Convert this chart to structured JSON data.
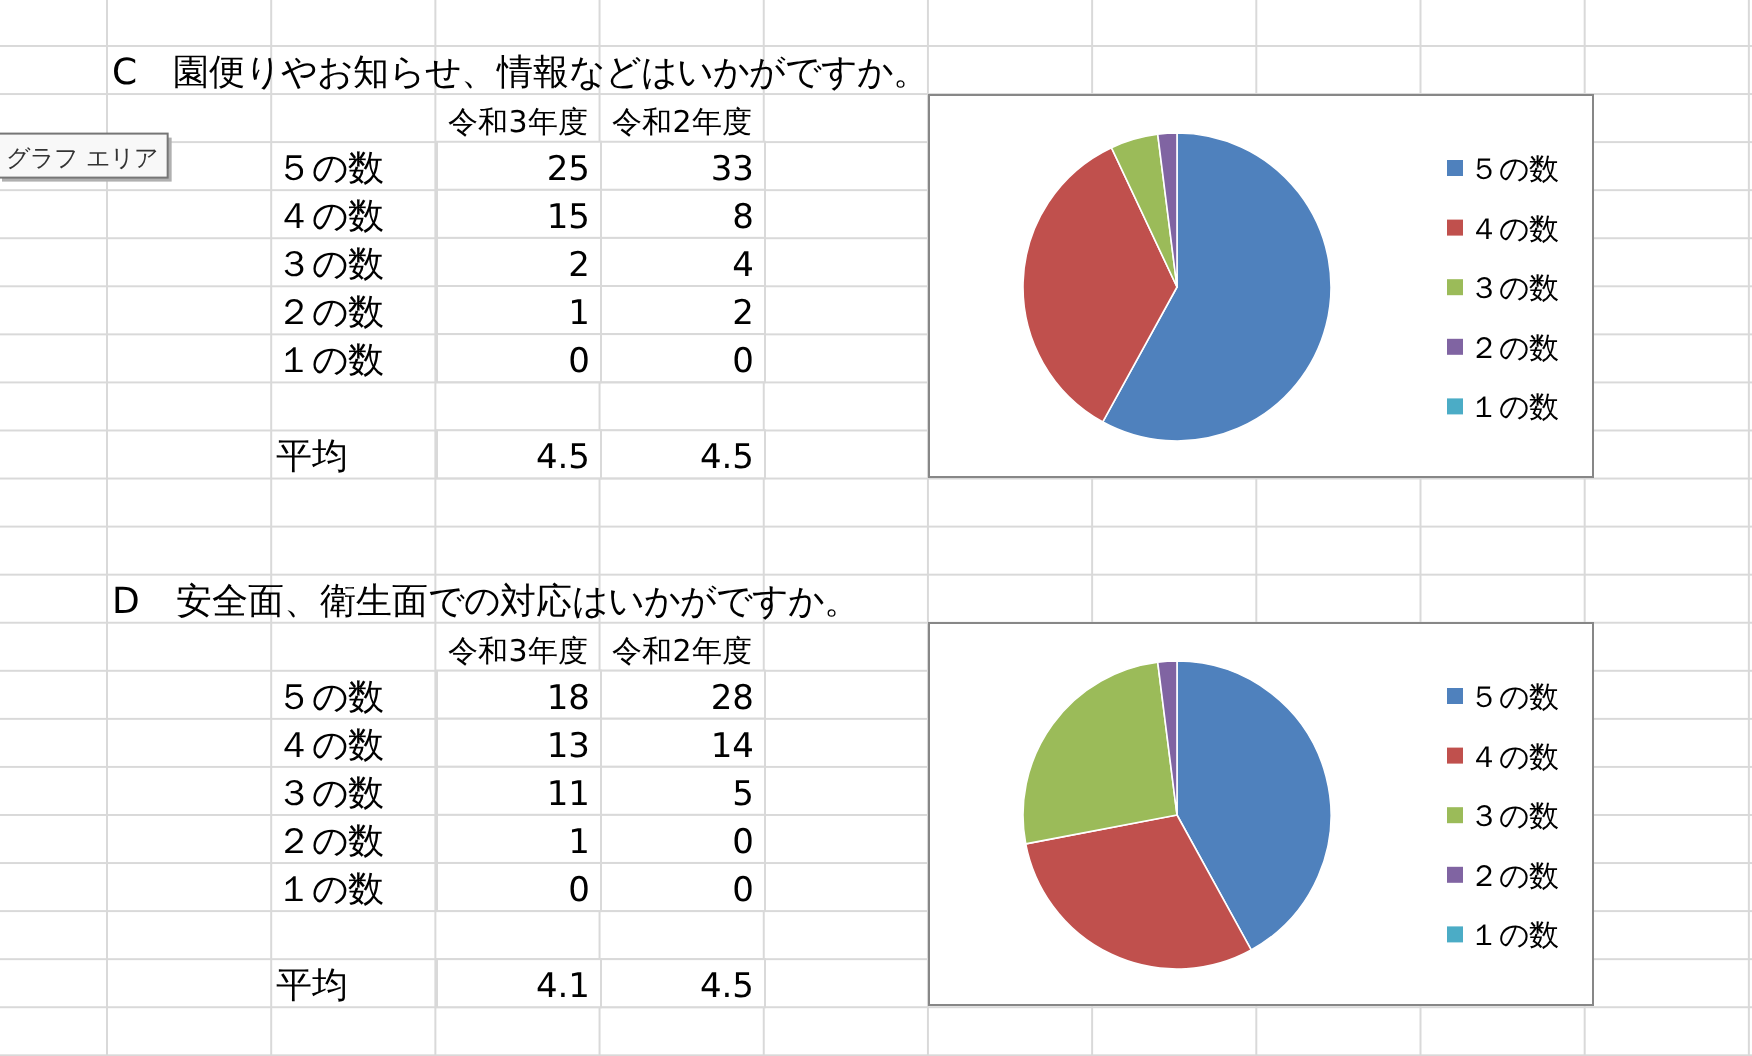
{
  "chart_data": [
    {
      "type": "heatmap",
      "title": "C　園便りやお知らせ、情報などはいかがですか。",
      "categories": [
        "令和3年度",
        "令和2年度"
      ],
      "y_categories": [
        "５の数",
        "４の数",
        "３の数",
        "２の数",
        "１の数"
      ],
      "cells": [
        [
          25,
          33
        ],
        [
          15,
          8
        ],
        [
          2,
          4
        ],
        [
          1,
          2
        ],
        [
          0,
          0
        ]
      ],
      "data_labels": true,
      "annotations": [
        "グラフ エリア"
      ]
    },
    {
      "type": "heatmap",
      "categories": [
        null,
        null
      ],
      "y_categories": [
        "平均"
      ],
      "cells": [
        [
          4.5,
          4.5
        ]
      ],
      "data_labels": true
    },
    {
      "type": "pie",
      "categories": [
        "５の数",
        "４の数",
        "３の数",
        "２の数",
        "１の数"
      ],
      "values": [
        58,
        35,
        5,
        2,
        0
      ],
      "colors": [
        "#4f81bd",
        "#c0504d",
        "#9bbb59",
        "#8064a2",
        "#4bacc6"
      ],
      "legend": "right"
    },
    {
      "type": "heatmap",
      "title": "D　安全面、衛生面での対応はいかがですか。",
      "categories": [
        "令和3年度",
        "令和2年度"
      ],
      "y_categories": [
        "５の数",
        "４の数",
        "３の数",
        "２の数",
        "１の数"
      ],
      "cells": [
        [
          18,
          28
        ],
        [
          13,
          14
        ],
        [
          11,
          5
        ],
        [
          1,
          0
        ],
        [
          0,
          0
        ]
      ],
      "data_labels": true
    },
    {
      "type": "heatmap",
      "categories": [
        null,
        null
      ],
      "y_categories": [
        "平均"
      ],
      "cells": [
        [
          4.1,
          4.5
        ]
      ],
      "data_labels": true
    },
    {
      "type": "pie",
      "categories": [
        "５の数",
        "４の数",
        "３の数",
        "２の数",
        "１の数"
      ],
      "values": [
        42,
        30,
        26,
        2,
        0
      ],
      "colors": [
        "#4f81bd",
        "#c0504d",
        "#9bbb59",
        "#8064a2",
        "#4bacc6"
      ],
      "legend": "right"
    }
  ]
}
